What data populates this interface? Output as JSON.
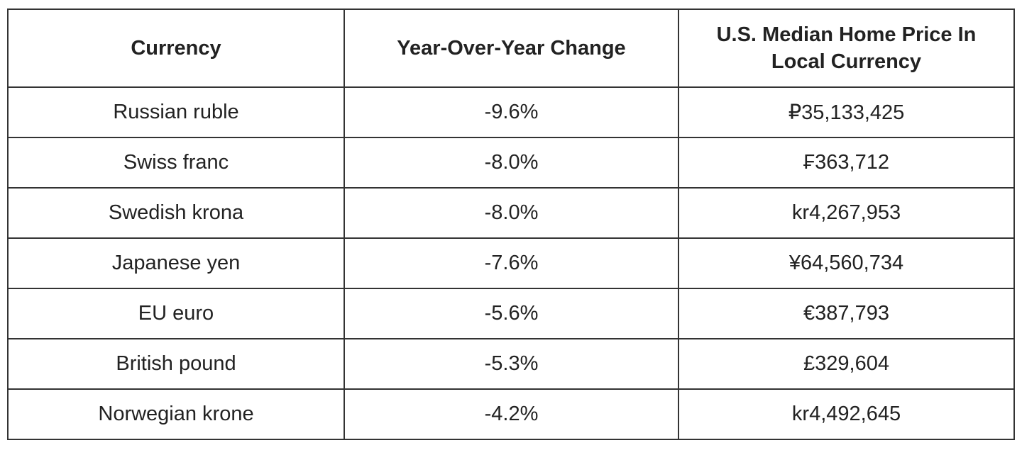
{
  "table": {
    "header": [
      "Currency",
      "Year-Over-Year Change",
      "U.S. Median Home Price In Local Currency"
    ],
    "rows": [
      [
        "Russian ruble",
        "-9.6%",
        "₽35,133,425"
      ],
      [
        "Swiss franc",
        "-8.0%",
        "₣363,712"
      ],
      [
        "Swedish krona",
        "-8.0%",
        "kr4,267,953"
      ],
      [
        "Japanese yen",
        "-7.6%",
        "¥64,560,734"
      ],
      [
        "EU euro",
        "-5.6%",
        "€387,793"
      ],
      [
        "British pound",
        "-5.3%",
        "£329,604"
      ],
      [
        "Norwegian krone",
        "-4.2%",
        "kr4,492,645"
      ]
    ]
  }
}
